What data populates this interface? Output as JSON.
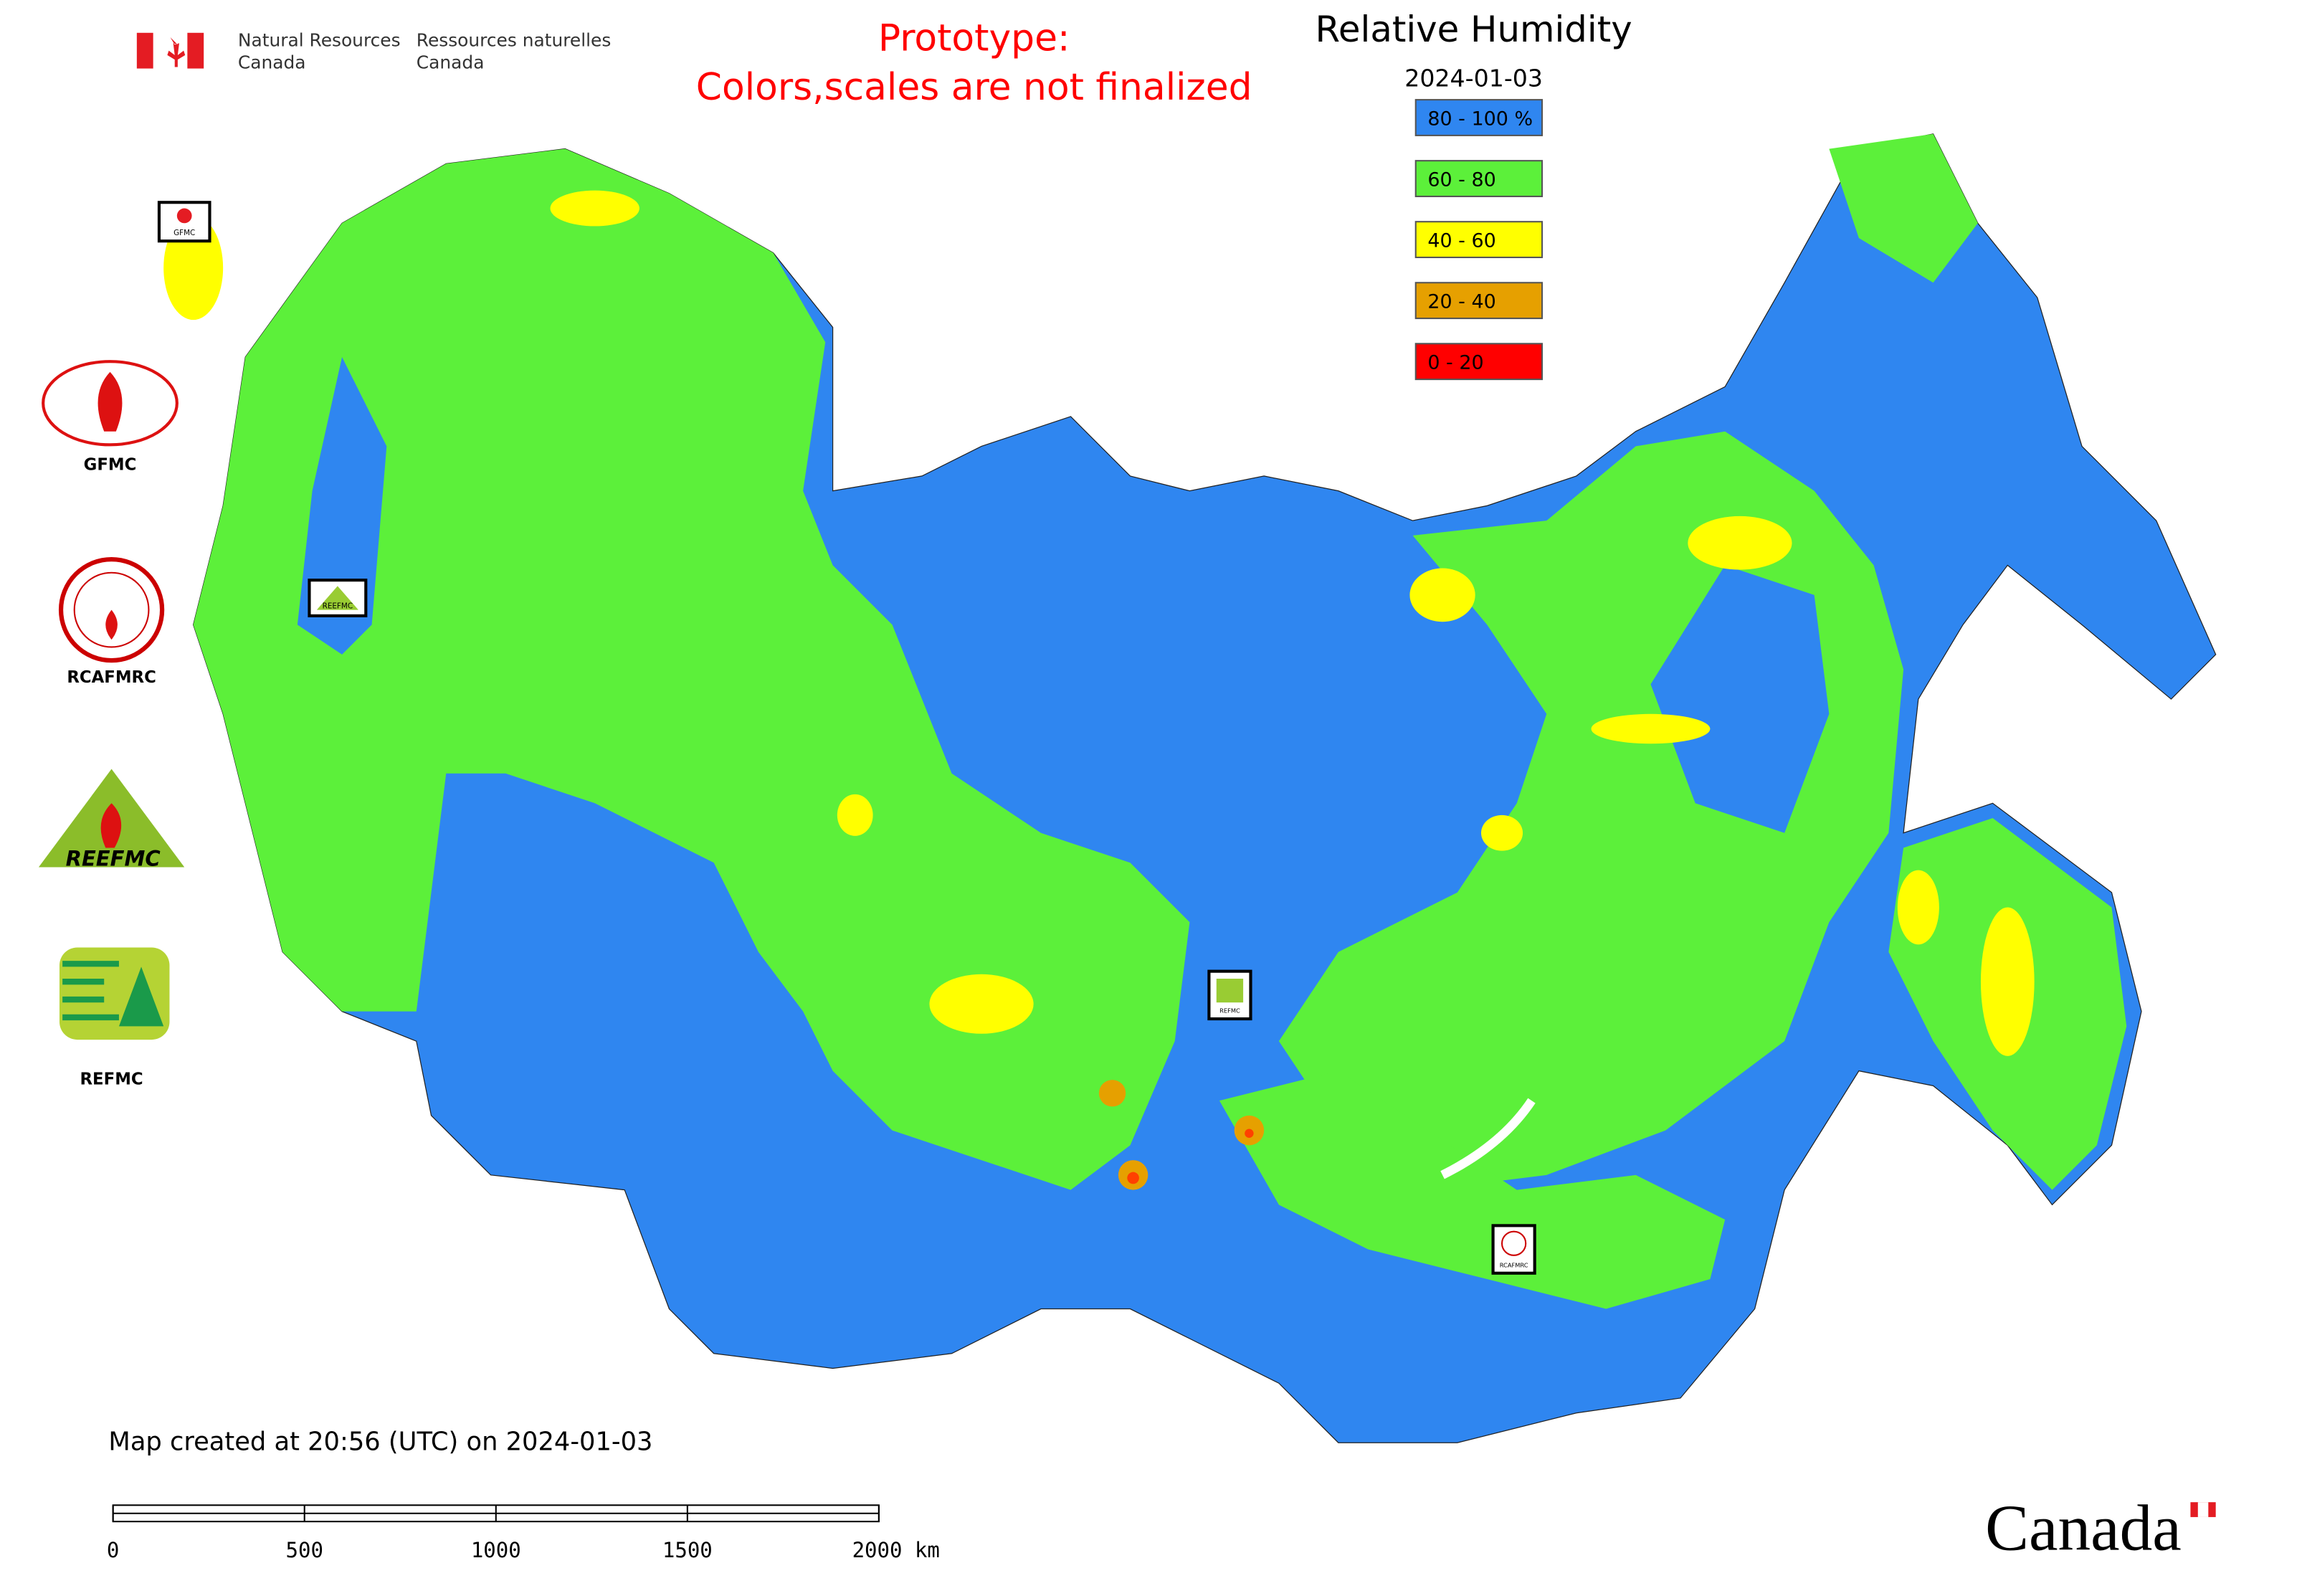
{
  "header": {
    "agency_en": [
      "Natural Resources",
      "Canada"
    ],
    "agency_fr": [
      "Ressources naturelles",
      "Canada"
    ],
    "notice": [
      "Prototype:",
      "Colors,scales are not finalized"
    ]
  },
  "legend": {
    "title": "Relative Humidity",
    "date": "2024-01-03",
    "items": [
      {
        "label": "80 - 100 %",
        "color": "#2f86f0"
      },
      {
        "label": "60 - 80",
        "color": "#5cf03a"
      },
      {
        "label": "40 - 60",
        "color": "#ffff00"
      },
      {
        "label": "20 - 40",
        "color": "#e6a000"
      },
      {
        "label": "0 - 20",
        "color": "#ff0000"
      }
    ]
  },
  "logos": [
    "GFMC",
    "RCAFMRC",
    "REEFMC",
    "REFMC"
  ],
  "map_labels": [
    "GFMC",
    "REEFMC",
    "REFMC",
    "RCAFMRC"
  ],
  "footer": {
    "created": "Map created at 20:56 (UTC) on 2024-01-03",
    "wordmark": "Canada"
  },
  "scale_bar": {
    "ticks": [
      0,
      500,
      1000,
      1500,
      {
        "value": 2000,
        "label": "2000 km"
      }
    ]
  }
}
